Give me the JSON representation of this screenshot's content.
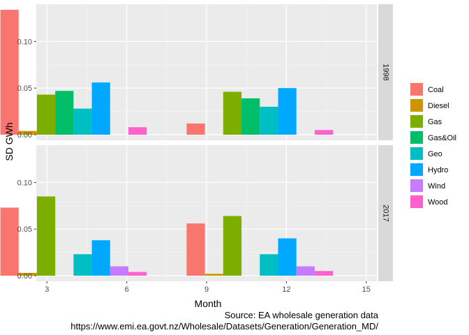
{
  "chart_data": {
    "type": "bar",
    "xlabel": "Month",
    "ylabel": "SD GWh",
    "xlim": [
      2.6,
      15.4
    ],
    "ylim": [
      -0.006,
      0.14
    ],
    "x_ticks": [
      3,
      6,
      9,
      12,
      15
    ],
    "y_ticks": [
      0.0,
      0.05,
      0.1
    ],
    "y_tick_labels": [
      "0.00",
      "0.05",
      "0.10"
    ],
    "x_categories": [
      4,
      11
    ],
    "bar_group_width": 5.5,
    "legend_position": "right",
    "grid": true,
    "series": [
      {
        "name": "Coal",
        "color": "#F8766D"
      },
      {
        "name": "Diesel",
        "color": "#CD9600"
      },
      {
        "name": "Gas",
        "color": "#7CAE00"
      },
      {
        "name": "Gas&Oil",
        "color": "#00BE67"
      },
      {
        "name": "Geo",
        "color": "#00BFC4"
      },
      {
        "name": "Hydro",
        "color": "#00A9FF"
      },
      {
        "name": "Wind",
        "color": "#C77CFF"
      },
      {
        "name": "Wood",
        "color": "#FF61CC"
      }
    ],
    "facets": [
      {
        "label": "1998",
        "values": {
          "4": {
            "Coal": 0.134,
            "Diesel": 0.004,
            "Gas": 0.043,
            "Gas&Oil": 0.047,
            "Geo": 0.028,
            "Hydro": 0.056,
            "Wood": 0.008
          },
          "11": {
            "Coal": 0.012,
            "Gas": 0.046,
            "Gas&Oil": 0.039,
            "Geo": 0.03,
            "Hydro": 0.05,
            "Wood": 0.005
          }
        }
      },
      {
        "label": "2017",
        "values": {
          "4": {
            "Coal": 0.073,
            "Diesel": 0.003,
            "Gas": 0.085,
            "Geo": 0.023,
            "Hydro": 0.038,
            "Wind": 0.01,
            "Wood": 0.004
          },
          "11": {
            "Coal": 0.056,
            "Diesel": 0.002,
            "Gas": 0.064,
            "Geo": 0.023,
            "Hydro": 0.04,
            "Wind": 0.01,
            "Wood": 0.005
          }
        }
      }
    ]
  },
  "caption": {
    "line1": "Source: EA wholesale generation data",
    "line2": "https://www.emi.ea.govt.nz/Wholesale/Datasets/Generation/Generation_MD/"
  }
}
